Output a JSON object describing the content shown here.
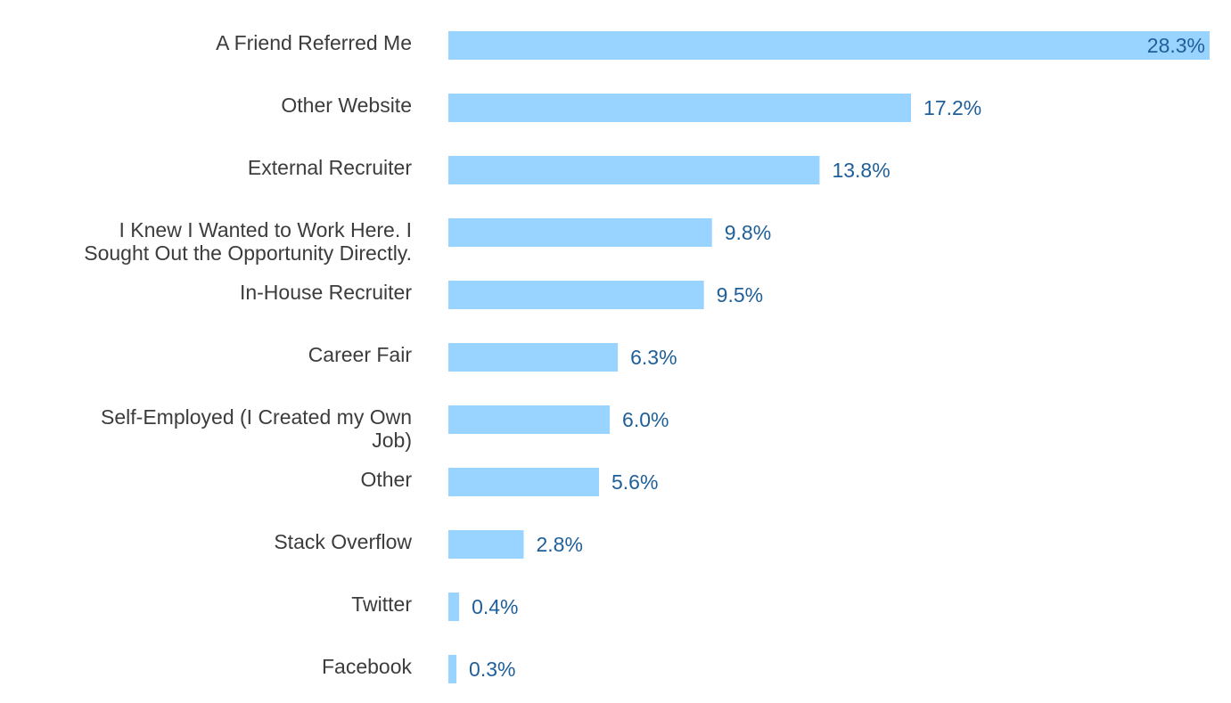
{
  "chart_data": {
    "type": "bar",
    "orientation": "horizontal",
    "title": "",
    "xlabel": "",
    "ylabel": "",
    "xlim": [
      0,
      28.3
    ],
    "grid": false,
    "legend": "none",
    "categories": [
      "A Friend Referred Me",
      "Other Website",
      "External Recruiter",
      "I Knew I Wanted to Work Here. I Sought Out the Opportunity Directly.",
      "In-House Recruiter",
      "Career Fair",
      "Self-Employed (I Created my Own Job)",
      "Other",
      "Stack Overflow",
      "Twitter",
      "Facebook"
    ],
    "category_lines": [
      [
        "A Friend Referred Me"
      ],
      [
        "Other Website"
      ],
      [
        "External Recruiter"
      ],
      [
        "I Knew I Wanted to Work Here. I",
        "Sought Out the Opportunity Directly."
      ],
      [
        "In-House Recruiter"
      ],
      [
        "Career Fair"
      ],
      [
        "Self-Employed (I Created my Own",
        "Job)"
      ],
      [
        "Other"
      ],
      [
        "Stack Overflow"
      ],
      [
        "Twitter"
      ],
      [
        "Facebook"
      ]
    ],
    "values": [
      28.3,
      17.2,
      13.8,
      9.8,
      9.5,
      6.3,
      6.0,
      5.6,
      2.8,
      0.4,
      0.3
    ],
    "value_labels": [
      "28.3%",
      "17.2%",
      "13.8%",
      "9.8%",
      "9.5%",
      "6.3%",
      "6.0%",
      "5.6%",
      "2.8%",
      "0.4%",
      "0.3%"
    ],
    "colors": {
      "bar": "#99d3ff",
      "value_label": "#1f5f99",
      "category_label": "#3c3c3c"
    }
  }
}
